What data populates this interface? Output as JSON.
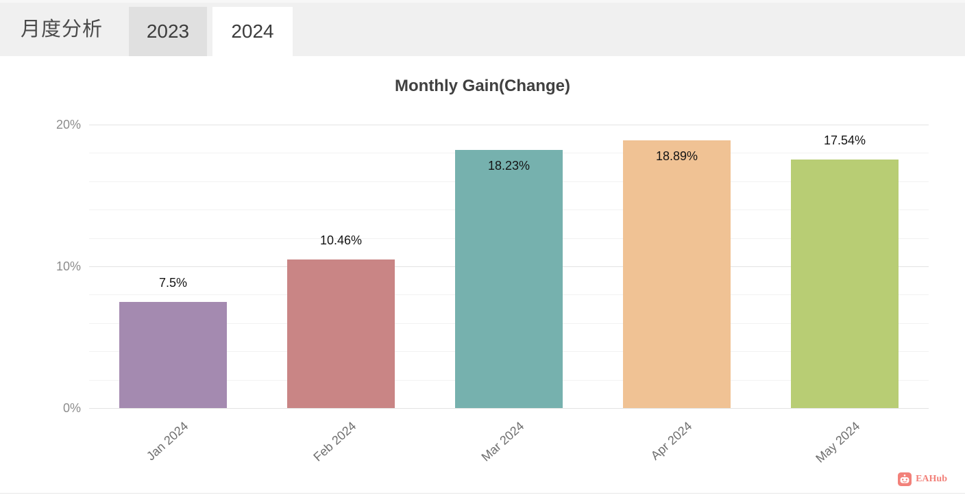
{
  "header": {
    "title": "月度分析",
    "tabs": [
      {
        "label": "2023",
        "active": false
      },
      {
        "label": "2024",
        "active": true
      }
    ]
  },
  "chart_data": {
    "type": "bar",
    "title": "Monthly Gain(Change)",
    "categories": [
      "Jan 2024",
      "Feb 2024",
      "Mar 2024",
      "Apr 2024",
      "May 2024"
    ],
    "values": [
      7.5,
      10.46,
      18.23,
      18.89,
      17.54
    ],
    "value_labels": [
      "7.5%",
      "10.46%",
      "18.23%",
      "18.89%",
      "17.54%"
    ],
    "bar_colors": [
      "#a48ab0",
      "#c98585",
      "#76b1ae",
      "#f0c294",
      "#b8cd74"
    ],
    "label_inside": [
      false,
      false,
      true,
      true,
      false
    ],
    "xlabel": "",
    "ylabel": "",
    "ylim": [
      0,
      20
    ],
    "ytick_values": [
      0,
      10,
      20
    ],
    "ytick_labels": [
      "0%",
      "10%",
      "20%"
    ],
    "minor_grid_step": 2,
    "grid": true,
    "legend": false
  },
  "watermark": {
    "label": "EAHub",
    "brand_color": "#f2817a",
    "icon": "robot-icon"
  }
}
